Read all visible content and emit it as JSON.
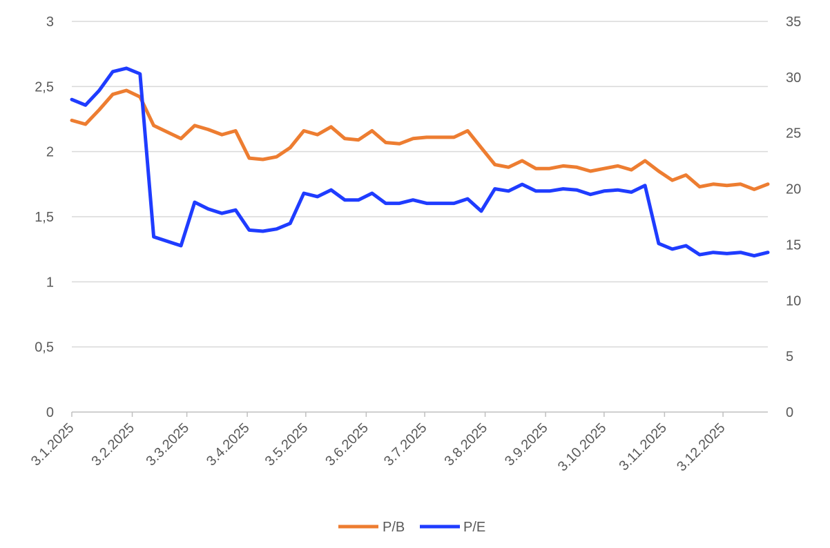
{
  "chart_data": {
    "type": "line",
    "title": "",
    "xlabel": "",
    "ylabel": "",
    "y2label": "",
    "x_ticks": [
      "3.1.2025",
      "3.2.2025",
      "3.3.2025",
      "3.4.2025",
      "3.5.2025",
      "3.6.2025",
      "3.7.2025",
      "3.8.2025",
      "3.9.2025",
      "3.10.2025",
      "3.11.2025",
      "3.12.2025"
    ],
    "y_ticks": [
      "0",
      "0,5",
      "1",
      "1,5",
      "2",
      "2,5",
      "3"
    ],
    "y2_ticks": [
      "0",
      "5",
      "10",
      "15",
      "20",
      "25",
      "30",
      "35"
    ],
    "ylim": [
      0,
      3
    ],
    "y2lim": [
      0,
      35
    ],
    "grid": true,
    "legend_position": "bottom",
    "series": [
      {
        "name": "P/B",
        "axis": "left",
        "color": "#ED7D31",
        "points": [
          [
            "2025-01-03",
            2.24
          ],
          [
            "2025-01-10",
            2.21
          ],
          [
            "2025-01-17",
            2.32
          ],
          [
            "2025-01-24",
            2.44
          ],
          [
            "2025-01-31",
            2.47
          ],
          [
            "2025-02-07",
            2.42
          ],
          [
            "2025-02-14",
            2.2
          ],
          [
            "2025-02-21",
            2.15
          ],
          [
            "2025-02-28",
            2.1
          ],
          [
            "2025-03-07",
            2.2
          ],
          [
            "2025-03-14",
            2.17
          ],
          [
            "2025-03-21",
            2.13
          ],
          [
            "2025-03-28",
            2.16
          ],
          [
            "2025-04-04",
            1.95
          ],
          [
            "2025-04-11",
            1.94
          ],
          [
            "2025-04-18",
            1.96
          ],
          [
            "2025-04-25",
            2.03
          ],
          [
            "2025-05-02",
            2.16
          ],
          [
            "2025-05-09",
            2.13
          ],
          [
            "2025-05-16",
            2.19
          ],
          [
            "2025-05-23",
            2.1
          ],
          [
            "2025-05-30",
            2.09
          ],
          [
            "2025-06-06",
            2.16
          ],
          [
            "2025-06-13",
            2.07
          ],
          [
            "2025-06-20",
            2.06
          ],
          [
            "2025-06-27",
            2.1
          ],
          [
            "2025-07-04",
            2.11
          ],
          [
            "2025-07-11",
            2.11
          ],
          [
            "2025-07-18",
            2.11
          ],
          [
            "2025-07-25",
            2.16
          ],
          [
            "2025-08-01",
            2.03
          ],
          [
            "2025-08-08",
            1.9
          ],
          [
            "2025-08-15",
            1.88
          ],
          [
            "2025-08-22",
            1.93
          ],
          [
            "2025-08-29",
            1.87
          ],
          [
            "2025-09-05",
            1.87
          ],
          [
            "2025-09-12",
            1.89
          ],
          [
            "2025-09-19",
            1.88
          ],
          [
            "2025-09-26",
            1.85
          ],
          [
            "2025-10-03",
            1.87
          ],
          [
            "2025-10-10",
            1.89
          ],
          [
            "2025-10-17",
            1.86
          ],
          [
            "2025-10-24",
            1.93
          ],
          [
            "2025-10-31",
            1.85
          ],
          [
            "2025-11-07",
            1.78
          ],
          [
            "2025-11-14",
            1.82
          ],
          [
            "2025-11-21",
            1.73
          ],
          [
            "2025-11-28",
            1.75
          ],
          [
            "2025-12-05",
            1.74
          ],
          [
            "2025-12-12",
            1.75
          ],
          [
            "2025-12-19",
            1.71
          ],
          [
            "2025-12-26",
            1.75
          ]
        ]
      },
      {
        "name": "P/E",
        "axis": "right",
        "color": "#1F3CFF",
        "points": [
          [
            "2025-01-03",
            28.0
          ],
          [
            "2025-01-10",
            27.5
          ],
          [
            "2025-01-17",
            28.8
          ],
          [
            "2025-01-24",
            30.5
          ],
          [
            "2025-01-31",
            30.8
          ],
          [
            "2025-02-07",
            30.3
          ],
          [
            "2025-02-14",
            15.7
          ],
          [
            "2025-02-21",
            15.3
          ],
          [
            "2025-02-28",
            14.9
          ],
          [
            "2025-03-07",
            18.8
          ],
          [
            "2025-03-14",
            18.2
          ],
          [
            "2025-03-21",
            17.8
          ],
          [
            "2025-03-28",
            18.1
          ],
          [
            "2025-04-04",
            16.3
          ],
          [
            "2025-04-11",
            16.2
          ],
          [
            "2025-04-18",
            16.4
          ],
          [
            "2025-04-25",
            16.9
          ],
          [
            "2025-05-02",
            19.6
          ],
          [
            "2025-05-09",
            19.3
          ],
          [
            "2025-05-16",
            19.9
          ],
          [
            "2025-05-23",
            19.0
          ],
          [
            "2025-05-30",
            19.0
          ],
          [
            "2025-06-06",
            19.6
          ],
          [
            "2025-06-13",
            18.7
          ],
          [
            "2025-06-20",
            18.7
          ],
          [
            "2025-06-27",
            19.0
          ],
          [
            "2025-07-04",
            18.7
          ],
          [
            "2025-07-11",
            18.7
          ],
          [
            "2025-07-18",
            18.7
          ],
          [
            "2025-07-25",
            19.1
          ],
          [
            "2025-08-01",
            18.0
          ],
          [
            "2025-08-08",
            20.0
          ],
          [
            "2025-08-15",
            19.8
          ],
          [
            "2025-08-22",
            20.4
          ],
          [
            "2025-08-29",
            19.8
          ],
          [
            "2025-09-05",
            19.8
          ],
          [
            "2025-09-12",
            20.0
          ],
          [
            "2025-09-19",
            19.9
          ],
          [
            "2025-09-26",
            19.5
          ],
          [
            "2025-10-03",
            19.8
          ],
          [
            "2025-10-10",
            19.9
          ],
          [
            "2025-10-17",
            19.7
          ],
          [
            "2025-10-24",
            20.3
          ],
          [
            "2025-10-31",
            15.1
          ],
          [
            "2025-11-07",
            14.6
          ],
          [
            "2025-11-14",
            14.9
          ],
          [
            "2025-11-21",
            14.1
          ],
          [
            "2025-11-28",
            14.3
          ],
          [
            "2025-12-05",
            14.2
          ],
          [
            "2025-12-12",
            14.3
          ],
          [
            "2025-12-19",
            14.0
          ],
          [
            "2025-12-26",
            14.3
          ]
        ]
      }
    ]
  }
}
